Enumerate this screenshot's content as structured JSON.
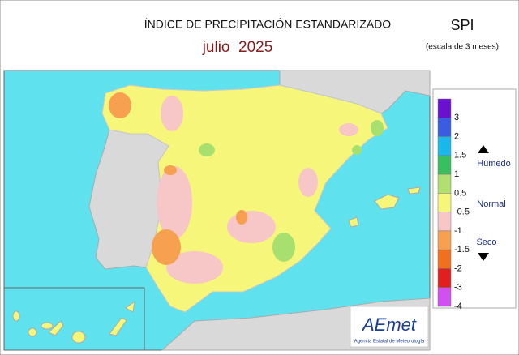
{
  "header": {
    "title": "ÍNDICE DE PRECIPITACIÓN ESTANDARIZADO",
    "subtitle": "julio  2025",
    "index": "SPI",
    "scale": "(escala de 3 meses)"
  },
  "legend": {
    "ticks": [
      "3",
      "2",
      "1.5",
      "1",
      "0.5",
      "-0.5",
      "-1",
      "-1.5",
      "-2",
      "-3",
      "-4"
    ],
    "colors": [
      "#6a10d0",
      "#3a5ce0",
      "#18b8ea",
      "#38c060",
      "#b0e070",
      "#f6f67a",
      "#f7c6c6",
      "#f6a050",
      "#f07020",
      "#e02020",
      "#d050f0"
    ],
    "wet": "Húmedo",
    "normal": "Normal",
    "dry": "Seco"
  },
  "logo": {
    "name": "AEmet",
    "agency": "Agencia Estatal de Meteorología"
  }
}
